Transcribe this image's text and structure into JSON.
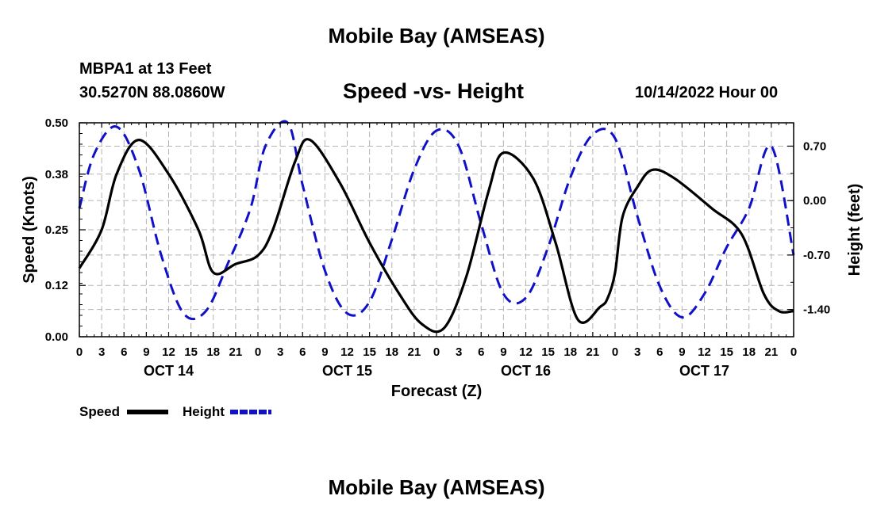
{
  "header": {
    "title": "Mobile Bay (AMSEAS)",
    "station": "MBPA1 at 13 Feet",
    "coords": "30.5270N  88.0860W",
    "subtitle": "Speed -vs- Height",
    "run_time": "10/14/2022 Hour 00"
  },
  "footer": {
    "title": "Mobile Bay (AMSEAS)"
  },
  "colors": {
    "speed": "#000000",
    "height": "#1010c8",
    "grid": "#b4b4b4"
  },
  "chart_data": {
    "type": "line",
    "title": "Speed -vs- Height",
    "xlabel": "Forecast (Z)",
    "ylabel": "Speed (Knots)",
    "y2label": "Height (feet)",
    "x_range_hours": [
      0,
      96
    ],
    "x_tick_step_hours": 3,
    "x_tick_labels": [
      "0",
      "3",
      "6",
      "9",
      "12",
      "15",
      "18",
      "21",
      "0",
      "3",
      "6",
      "9",
      "12",
      "15",
      "18",
      "21",
      "0",
      "3",
      "6",
      "9",
      "12",
      "15",
      "18",
      "21",
      "0",
      "3",
      "6",
      "9",
      "12",
      "15",
      "18",
      "21",
      "0"
    ],
    "day_labels": [
      {
        "hour": 12,
        "label": "OCT 14"
      },
      {
        "hour": 36,
        "label": "OCT 15"
      },
      {
        "hour": 60,
        "label": "OCT 16"
      },
      {
        "hour": 84,
        "label": "OCT 17"
      }
    ],
    "ylim": [
      0,
      0.5
    ],
    "y_ticks": [
      0.0,
      0.12,
      0.25,
      0.38,
      0.5
    ],
    "y_tick_labels": [
      "0.00",
      "0.12",
      "0.25",
      "0.38",
      "0.50"
    ],
    "y2lim": [
      -1.75,
      1.0
    ],
    "y2_ticks": [
      0.7,
      0.0,
      -0.7,
      -1.4
    ],
    "y2_tick_labels": [
      "0.70",
      "0.00",
      "-0.70",
      "-1.40"
    ],
    "grid": true,
    "series": [
      {
        "name": "Speed",
        "axis": "left",
        "style": "solid",
        "x": [
          0,
          3,
          5,
          8,
          12,
          16,
          18,
          21,
          24,
          26,
          29,
          31,
          35,
          39,
          43,
          46,
          49,
          52,
          55,
          57,
          61,
          64,
          67,
          70,
          71,
          72,
          73,
          75,
          77,
          80,
          85,
          89,
          92,
          94,
          96
        ],
        "y": [
          0.16,
          0.25,
          0.38,
          0.46,
          0.38,
          0.25,
          0.15,
          0.17,
          0.19,
          0.25,
          0.41,
          0.46,
          0.36,
          0.22,
          0.1,
          0.03,
          0.02,
          0.14,
          0.34,
          0.43,
          0.37,
          0.22,
          0.04,
          0.07,
          0.09,
          0.15,
          0.28,
          0.35,
          0.39,
          0.37,
          0.3,
          0.24,
          0.1,
          0.06,
          0.06
        ]
      },
      {
        "name": "Height",
        "axis": "right",
        "style": "dashed",
        "x": [
          0,
          2,
          5,
          8,
          11,
          14,
          17,
          20,
          23,
          25,
          28,
          30,
          33,
          36,
          39,
          42,
          45,
          48,
          51,
          54,
          57,
          60,
          63,
          66,
          69,
          72,
          75,
          78,
          81,
          84,
          87,
          90,
          93,
          96
        ],
        "y": [
          -0.1,
          0.6,
          0.95,
          0.4,
          -0.7,
          -1.45,
          -1.42,
          -0.8,
          -0.1,
          0.7,
          1.0,
          0.2,
          -0.9,
          -1.45,
          -1.3,
          -0.5,
          0.4,
          0.9,
          0.7,
          -0.3,
          -1.2,
          -1.25,
          -0.6,
          0.3,
          0.85,
          0.8,
          -0.2,
          -1.1,
          -1.5,
          -1.2,
          -0.6,
          -0.1,
          0.7,
          -0.7
        ]
      }
    ]
  },
  "legend": {
    "speed_label": "Speed",
    "height_label": "Height"
  }
}
